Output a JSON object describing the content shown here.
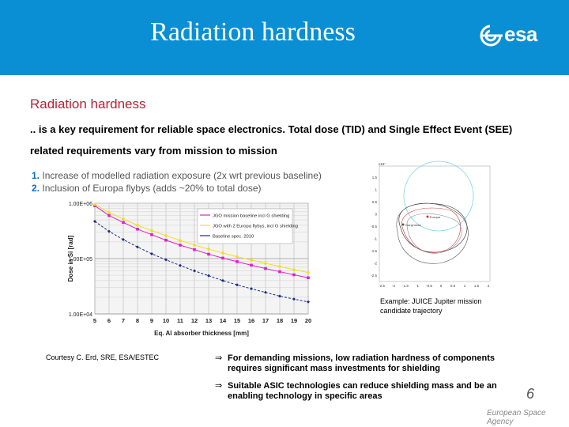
{
  "slide": {
    "header_title": "Radiation hardness",
    "logo_text": "esa",
    "section_title": "Radiation hardness",
    "intro_text": ".. is a key requirement for reliable space electronics. Total dose (TID) and Single Effect Event (SEE) related requirements vary from mission to mission",
    "list": [
      {
        "num": "1.",
        "text": "Increase of modelled radiation exposure (2x wrt previous baseline)"
      },
      {
        "num": "2.",
        "text": "Inclusion of Europa flybys (adds ~20% to total dose)"
      }
    ],
    "caption": "Example: JUICE Jupiter mission candidate trajectory",
    "courtesy": "Courtesy C. Erd, SRE, ESA/ESTEC",
    "bullets": [
      {
        "arrow": "⇒",
        "text": "For demanding missions, low radiation hardness of components requires significant mass investments for shielding"
      },
      {
        "arrow": "⇒",
        "text": "Suitable ASIC technologies can reduce shielding mass and be an enabling technology in specific areas"
      }
    ],
    "page_number": "6",
    "agency": "European Space Agency"
  },
  "colors": {
    "header": "#0a8fd4",
    "section_title": "#b22234",
    "series_jgo": "#e020c8",
    "series_europa": "#f0e020",
    "series_baseline": "#1a2a8c"
  },
  "chart_data": [
    {
      "type": "line",
      "xlabel": "Eq. Al absorber thickness [mm]",
      "ylabel": "Dose in Si [rad]",
      "x": [
        5,
        6,
        7,
        8,
        9,
        10,
        11,
        12,
        13,
        14,
        15,
        16,
        17,
        18,
        19,
        20
      ],
      "xlim": [
        5,
        20
      ],
      "y_scale": "log",
      "ylim": [
        10000,
        1000000
      ],
      "ytick_labels": [
        "1.00E+06",
        "1.00E+05",
        "1.00E+04"
      ],
      "xtick_labels": [
        "5",
        "6",
        "7",
        "8",
        "9",
        "10",
        "11",
        "12",
        "13",
        "14",
        "15",
        "16",
        "17",
        "18",
        "19",
        "20"
      ],
      "grid": true,
      "legend_position": "top-right",
      "series": [
        {
          "name": "JGO mission baseline incl G shielding",
          "values": [
            900000,
            600000,
            450000,
            340000,
            270000,
            215000,
            175000,
            145000,
            120000,
            102000,
            88000,
            76000,
            66000,
            58000,
            51000,
            45000
          ]
        },
        {
          "name": "JGO with 2 Europa flybys, incl G shielding",
          "values": [
            950000,
            680000,
            520000,
            400000,
            320000,
            260000,
            212000,
            176000,
            148000,
            126000,
            108000,
            94000,
            82000,
            72000,
            63000,
            56000
          ]
        },
        {
          "name": "Baseline spec. 2010",
          "values": [
            470000,
            310000,
            220000,
            162000,
            122000,
            95000,
            75000,
            60000,
            49000,
            40000,
            33500,
            28500,
            24500,
            21000,
            18500,
            16500
          ]
        }
      ]
    },
    {
      "type": "line",
      "title": "",
      "xtick_labels": [
        "-2.5",
        "-2",
        "-1.5",
        "-1",
        "-0.5",
        "0",
        "0.5",
        "1",
        "1.5",
        "2"
      ],
      "ytick_labels": [
        "1.5",
        "1",
        "0.5",
        "0",
        "-0.5",
        "-1",
        "-1.5",
        "-2",
        "-2.5"
      ],
      "y_exponent": "x10⁷",
      "annotations": [
        "Europa",
        "Ganymede"
      ]
    }
  ]
}
